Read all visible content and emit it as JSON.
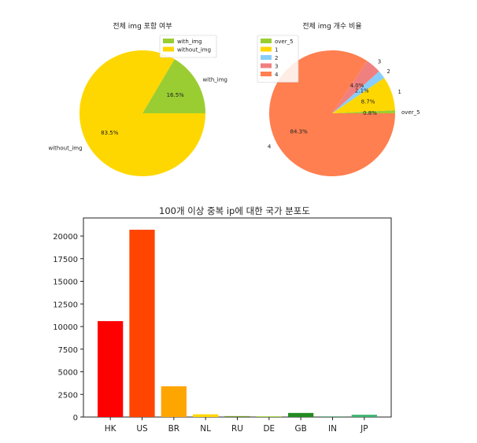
{
  "chart_data": [
    {
      "type": "pie",
      "title": "전체 img 포함 여부",
      "labels": [
        "with_img",
        "without_img"
      ],
      "values": [
        16.5,
        83.5
      ],
      "pct_labels": [
        "16.5%",
        "83.5%"
      ],
      "colors": [
        "#9acd32",
        "#ffd700"
      ],
      "legend": [
        "with_img",
        "without_img"
      ],
      "legend_position": "top-right"
    },
    {
      "type": "pie",
      "title": "전체 img 개수 비율",
      "labels": [
        "over_5",
        "1",
        "2",
        "3",
        "4"
      ],
      "values": [
        0.8,
        8.7,
        2.1,
        4.0,
        84.3
      ],
      "pct_labels": [
        "0.8%",
        "8.7%",
        "2.1%",
        "4.0%",
        "84.3%"
      ],
      "colors": [
        "#9acd32",
        "#ffd700",
        "#87cefa",
        "#f08080",
        "#ff7f50"
      ],
      "legend": [
        "over_5",
        "1",
        "2",
        "3",
        "4"
      ],
      "legend_position": "upper-left"
    },
    {
      "type": "bar",
      "title": "100개 이상 중복 ip에 대한 국가 분포도",
      "categories": [
        "HK",
        "US",
        "BR",
        "NL",
        "RU",
        "DE",
        "GB",
        "IN",
        "JP"
      ],
      "values": [
        10600,
        20700,
        3400,
        300,
        100,
        80,
        450,
        60,
        250
      ],
      "colors": [
        "#ff0000",
        "#ff4500",
        "#ffa500",
        "#ffd700",
        "#6b8e23",
        "#9acd32",
        "#228b22",
        "#2e8b57",
        "#3cb371"
      ],
      "yticks": [
        "0",
        "2500",
        "5000",
        "7500",
        "10000",
        "12500",
        "15000",
        "17500",
        "20000"
      ],
      "ylim": [
        0,
        22000
      ],
      "xlabel": "",
      "ylabel": ""
    }
  ]
}
